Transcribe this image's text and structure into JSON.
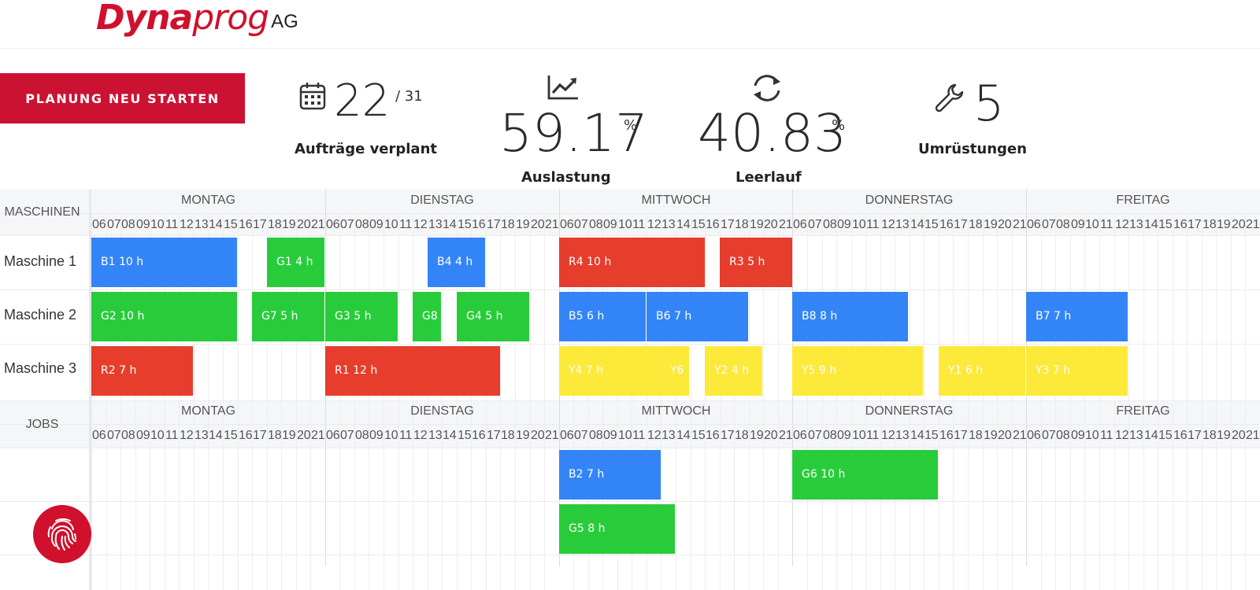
{
  "logo": {
    "brand_main": "Dyna",
    "brand_prog": "prog",
    "suffix": "AG"
  },
  "actions": {
    "restart_label": "PLANUNG NEU STARTEN"
  },
  "kpis": {
    "orders": {
      "value": "22",
      "total": "/ 31",
      "label": "Aufträge verplant",
      "icon": "calendar-icon"
    },
    "utilization": {
      "value": "59.17",
      "unit": "%",
      "label": "Auslastung",
      "icon": "line-chart-icon"
    },
    "idle": {
      "value": "40.83",
      "unit": "%",
      "label": "Leerlauf",
      "icon": "refresh-icon"
    },
    "changeovers": {
      "value": "5",
      "label": "Umrüstungen",
      "icon": "wrench-icon"
    }
  },
  "gantt": {
    "days": [
      "MONTAG",
      "DIENSTAG",
      "MITTWOCH",
      "DONNERSTAG",
      "FREITAG"
    ],
    "hours": [
      "06",
      "07",
      "08",
      "09",
      "10",
      "11",
      "12",
      "13",
      "14",
      "15",
      "16",
      "17",
      "18",
      "19",
      "20",
      "21"
    ],
    "machines_header": "MASCHINEN",
    "jobs_header": "JOBS",
    "machines": [
      "Maschine 1",
      "Maschine 2",
      "Maschine 3"
    ],
    "colors": {
      "blue": "#3385f7",
      "green": "#28cc3b",
      "red": "#e63d2c",
      "yellow": "#fde93a"
    },
    "machine_blocks": [
      {
        "row": 0,
        "label": "B1 10 h",
        "day": 0,
        "start": 0,
        "dur": 10,
        "color": "blue"
      },
      {
        "row": 0,
        "label": "G1 4 h",
        "day": 0,
        "start": 12,
        "dur": 4,
        "color": "green"
      },
      {
        "row": 0,
        "label": "B4 4 h",
        "day": 1,
        "start": 7,
        "dur": 4,
        "color": "blue"
      },
      {
        "row": 0,
        "label": "R4 10 h",
        "day": 2,
        "start": 0,
        "dur": 10,
        "color": "red"
      },
      {
        "row": 0,
        "label": "R3 5 h",
        "day": 2,
        "start": 11,
        "dur": 5,
        "color": "red"
      },
      {
        "row": 1,
        "label": "G2 10 h",
        "day": 0,
        "start": 0,
        "dur": 10,
        "color": "green"
      },
      {
        "row": 1,
        "label": "G7 5 h",
        "day": 0,
        "start": 11,
        "dur": 5,
        "color": "green"
      },
      {
        "row": 1,
        "label": "G3 5 h",
        "day": 1,
        "start": 0,
        "dur": 5,
        "color": "green"
      },
      {
        "row": 1,
        "label": "G8",
        "day": 1,
        "start": 6,
        "dur": 2,
        "color": "green"
      },
      {
        "row": 1,
        "label": "G4 5 h",
        "day": 1,
        "start": 9,
        "dur": 5,
        "color": "green"
      },
      {
        "row": 1,
        "label": "B5 6 h",
        "day": 2,
        "start": 0,
        "dur": 6,
        "color": "blue"
      },
      {
        "row": 1,
        "label": "B6 7 h",
        "day": 2,
        "start": 6,
        "dur": 7,
        "color": "blue"
      },
      {
        "row": 1,
        "label": "B8 8 h",
        "day": 3,
        "start": 0,
        "dur": 8,
        "color": "blue"
      },
      {
        "row": 1,
        "label": "B7 7 h",
        "day": 4,
        "start": 0,
        "dur": 7,
        "color": "blue"
      },
      {
        "row": 2,
        "label": "R2 7 h",
        "day": 0,
        "start": 0,
        "dur": 7,
        "color": "red"
      },
      {
        "row": 2,
        "label": "R1 12 h",
        "day": 1,
        "start": 0,
        "dur": 12,
        "color": "red"
      },
      {
        "row": 2,
        "label": "Y4 7 h",
        "day": 2,
        "start": 0,
        "dur": 7,
        "color": "yellow"
      },
      {
        "row": 2,
        "label": "Y6",
        "day": 2,
        "start": 7,
        "dur": 2,
        "color": "yellow"
      },
      {
        "row": 2,
        "label": "Y2 4 h",
        "day": 2,
        "start": 10,
        "dur": 4,
        "color": "yellow"
      },
      {
        "row": 2,
        "label": "Y5 9 h",
        "day": 3,
        "start": 0,
        "dur": 9,
        "color": "yellow"
      },
      {
        "row": 2,
        "label": "Y1 6 h",
        "day": 3,
        "start": 10,
        "dur": 6,
        "color": "yellow"
      },
      {
        "row": 2,
        "label": "Y3 7 h",
        "day": 4,
        "start": 0,
        "dur": 7,
        "color": "yellow"
      }
    ],
    "job_blocks": [
      {
        "row": 0,
        "label": "B2 7 h",
        "day": 2,
        "start": 0,
        "dur": 7,
        "color": "blue"
      },
      {
        "row": 0,
        "label": "G6 10 h",
        "day": 3,
        "start": 0,
        "dur": 10,
        "color": "green"
      },
      {
        "row": 1,
        "label": "G5 8 h",
        "day": 2,
        "start": 0,
        "dur": 8,
        "color": "green"
      }
    ]
  },
  "fab": {
    "icon": "fingerprint-icon"
  }
}
